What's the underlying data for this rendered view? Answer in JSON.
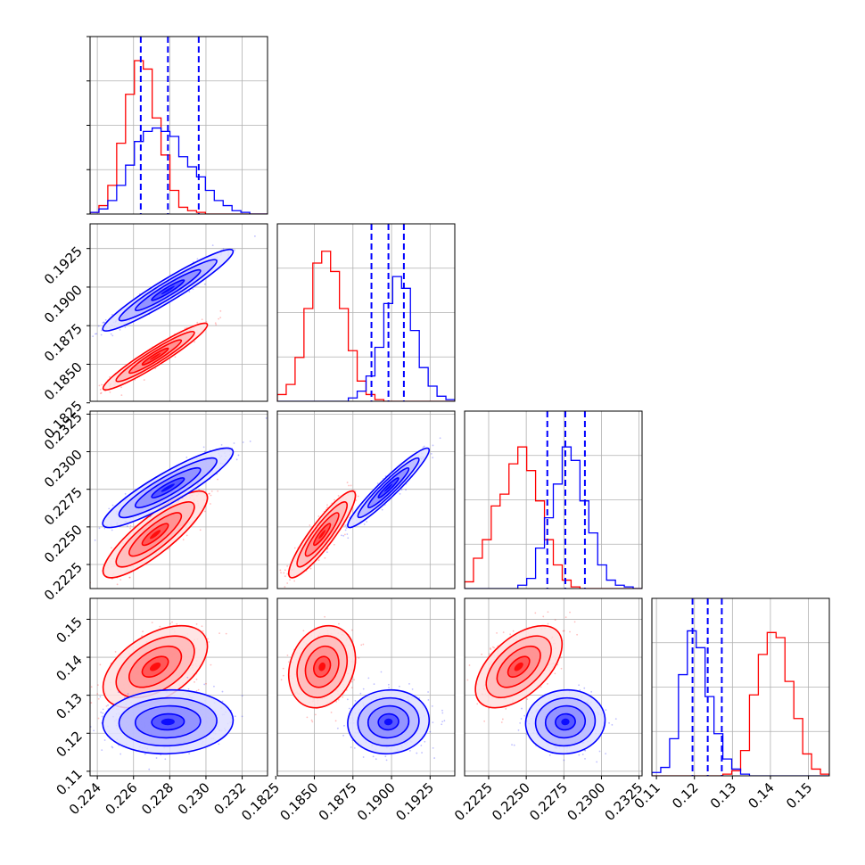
{
  "chart_data": {
    "type": "corner",
    "dimensions": 4,
    "colors": {
      "red_series": "#ff0000",
      "blue_series": "#0000ff",
      "grid": "#b0b0b0",
      "axis": "#000000"
    },
    "series": [
      {
        "color": "#ff0000",
        "mean": [
          0.2272,
          0.1855,
          0.2245,
          0.1375
        ],
        "sd": [
          0.0012,
          0.0009,
          0.0012,
          0.0045
        ],
        "corr": [
          [
            1,
            0.95,
            0.85,
            0.5
          ],
          [
            0.95,
            1,
            0.9,
            0.2
          ],
          [
            0.85,
            0.9,
            1,
            0.55
          ],
          [
            0.5,
            0.2,
            0.55,
            1
          ]
        ]
      },
      {
        "color": "#0000ff",
        "mean": [
          0.2279,
          0.1898,
          0.2276,
          0.123
        ],
        "sd": [
          0.0015,
          0.0011,
          0.0011,
          0.0035
        ],
        "corr": [
          [
            1,
            0.95,
            0.9,
            0.05
          ],
          [
            0.95,
            1,
            0.95,
            0.05
          ],
          [
            0.9,
            0.95,
            1,
            0.05
          ],
          [
            0.05,
            0.05,
            0.05,
            1
          ]
        ]
      }
    ],
    "quantiles": [
      [
        0.2264,
        0.2279,
        0.2296
      ],
      [
        0.1887,
        0.1898,
        0.1908
      ],
      [
        0.2264,
        0.2276,
        0.2289
      ],
      [
        0.1195,
        0.1235,
        0.1272
      ]
    ],
    "ranges": [
      [
        0.2236,
        0.2334
      ],
      [
        0.1826,
        0.1941
      ],
      [
        0.2209,
        0.2327
      ],
      [
        0.1088,
        0.1555
      ]
    ],
    "histograms": [
      {
        "edges": [
          0.2236,
          0.2334
        ],
        "red": [
          0.01,
          0.05,
          0.17,
          0.42,
          0.71,
          0.91,
          0.86,
          0.57,
          0.35,
          0.14,
          0.04,
          0.02,
          0.01,
          0,
          0,
          0,
          0,
          0,
          0,
          0
        ],
        "blue": [
          0.01,
          0.03,
          0.08,
          0.17,
          0.29,
          0.43,
          0.49,
          0.51,
          0.49,
          0.46,
          0.34,
          0.28,
          0.22,
          0.14,
          0.08,
          0.05,
          0.02,
          0.01,
          0,
          0
        ]
      },
      {
        "edges": [
          0.1826,
          0.1941
        ],
        "red": [
          0.04,
          0.1,
          0.26,
          0.55,
          0.82,
          0.89,
          0.77,
          0.55,
          0.3,
          0.12,
          0.04,
          0.01,
          0,
          0,
          0,
          0,
          0,
          0,
          0,
          0
        ],
        "blue": [
          0,
          0,
          0,
          0,
          0,
          0,
          0,
          0,
          0.02,
          0.06,
          0.15,
          0.32,
          0.58,
          0.74,
          0.67,
          0.42,
          0.2,
          0.09,
          0.03,
          0.01
        ]
      },
      {
        "edges": [
          0.2209,
          0.2327
        ],
        "red": [
          0.04,
          0.18,
          0.29,
          0.49,
          0.56,
          0.74,
          0.84,
          0.7,
          0.52,
          0.29,
          0.14,
          0.05,
          0.01,
          0,
          0,
          0,
          0,
          0,
          0,
          0
        ],
        "blue": [
          0,
          0,
          0,
          0,
          0,
          0,
          0.02,
          0.06,
          0.24,
          0.42,
          0.62,
          0.84,
          0.76,
          0.52,
          0.33,
          0.14,
          0.05,
          0.02,
          0.01,
          0
        ]
      },
      {
        "edges": [
          0.1088,
          0.1555
        ],
        "red": [
          0,
          0,
          0,
          0,
          0,
          0,
          0,
          0,
          0.01,
          0.03,
          0.15,
          0.48,
          0.72,
          0.85,
          0.82,
          0.56,
          0.34,
          0.13,
          0.04,
          0.01
        ],
        "blue": [
          0.02,
          0.05,
          0.22,
          0.6,
          0.86,
          0.76,
          0.47,
          0.25,
          0.1,
          0.04,
          0.01,
          0,
          0,
          0,
          0,
          0,
          0,
          0,
          0,
          0
        ]
      }
    ],
    "xticks": [
      [
        "0.224",
        "0.226",
        "0.228",
        "0.230",
        "0.232"
      ],
      [
        "0.1825",
        "0.1850",
        "0.1875",
        "0.1900",
        "0.1925"
      ],
      [
        "0.2225",
        "0.2250",
        "0.2275",
        "0.2300",
        "0.2325"
      ],
      [
        "0.11",
        "0.12",
        "0.13",
        "0.14",
        "0.15"
      ]
    ],
    "yticks": [
      [],
      [
        "0.1825",
        "0.1850",
        "0.1875",
        "0.1900",
        "0.1925"
      ],
      [
        "0.2225",
        "0.2250",
        "0.2275",
        "0.2300",
        "0.2325"
      ],
      [
        "0.11",
        "0.12",
        "0.13",
        "0.14",
        "0.15"
      ]
    ],
    "grid": true
  }
}
